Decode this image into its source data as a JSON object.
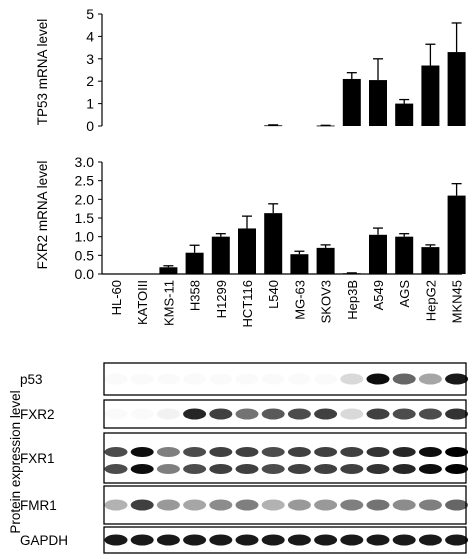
{
  "chart_data": [
    {
      "type": "bar",
      "ylabel": "TP53 mRNA  level",
      "ylim": [
        0,
        5
      ],
      "yticks": [
        "0",
        "1",
        "2",
        "3",
        "4",
        "5"
      ],
      "categories": [
        "HL-60",
        "KATOIII",
        "KMS-11",
        "H358",
        "H1299",
        "HCT116",
        "L540",
        "MG-63",
        "SKOV3",
        "Hep3B",
        "A549",
        "AGS",
        "HepG2",
        "MKN45"
      ],
      "values": [
        0,
        0,
        0,
        0,
        0,
        0,
        0.03,
        0,
        0.02,
        2.1,
        2.05,
        1.0,
        2.7,
        3.3
      ],
      "errors": [
        0,
        0,
        0,
        0,
        0,
        0,
        0.02,
        0,
        0.01,
        0.28,
        0.95,
        0.18,
        0.95,
        1.3
      ],
      "bar_color": "#000000"
    },
    {
      "type": "bar",
      "ylabel": "FXR2 mRNA  level",
      "ylim": [
        0,
        3
      ],
      "yticks": [
        "0.0",
        "0.5",
        "1.0",
        "1.5",
        "2.0",
        "2.5",
        "3.0"
      ],
      "categories": [
        "HL-60",
        "KATOIII",
        "KMS-11",
        "H358",
        "H1299",
        "HCT116",
        "L540",
        "MG-63",
        "SKOV3",
        "Hep3B",
        "A549",
        "AGS",
        "HepG2",
        "MKN45"
      ],
      "values": [
        0,
        0,
        0.18,
        0.57,
        1.0,
        1.22,
        1.63,
        0.53,
        0.7,
        0.02,
        1.05,
        1.0,
        0.72,
        2.1
      ],
      "errors": [
        0,
        0,
        0.04,
        0.2,
        0.08,
        0.33,
        0.25,
        0.08,
        0.08,
        0.01,
        0.18,
        0.08,
        0.06,
        0.32
      ],
      "bar_color": "#000000"
    }
  ],
  "blot": {
    "ylabel": "Protein expression level",
    "rows": [
      {
        "label": "p53",
        "intensities": [
          0.02,
          0.02,
          0.02,
          0.02,
          0.02,
          0.02,
          0.02,
          0.02,
          0.02,
          0.15,
          0.95,
          0.6,
          0.35,
          0.9
        ]
      },
      {
        "label": "FXR2",
        "intensities": [
          0.02,
          0.02,
          0.05,
          0.85,
          0.75,
          0.55,
          0.65,
          0.7,
          0.75,
          0.15,
          0.75,
          0.7,
          0.7,
          0.8
        ]
      },
      {
        "label": "FXR1",
        "intensities": [
          0.7,
          0.95,
          0.5,
          0.7,
          0.75,
          0.75,
          0.7,
          0.75,
          0.75,
          0.75,
          0.8,
          0.85,
          0.95,
          1.0
        ]
      },
      {
        "label": "FMR1",
        "intensities": [
          0.3,
          0.75,
          0.4,
          0.35,
          0.45,
          0.5,
          0.3,
          0.4,
          0.4,
          0.5,
          0.55,
          0.45,
          0.5,
          0.6
        ]
      },
      {
        "label": "GAPDH",
        "intensities": [
          0.9,
          0.9,
          0.9,
          0.9,
          0.9,
          0.9,
          0.9,
          0.9,
          0.9,
          0.9,
          0.9,
          0.9,
          0.9,
          0.9
        ]
      }
    ]
  }
}
